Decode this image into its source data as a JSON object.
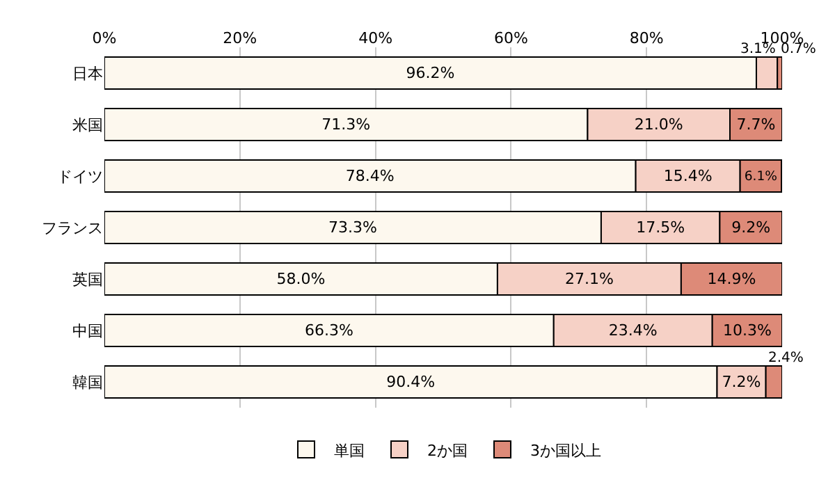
{
  "chart_data": {
    "type": "bar",
    "orientation": "horizontal",
    "stacked": true,
    "categories": [
      "日本",
      "米国",
      "ドイツ",
      "フランス",
      "英国",
      "中国",
      "韓国"
    ],
    "series": [
      {
        "name": "単国",
        "color": "#fdf8ee",
        "values": [
          96.2,
          71.3,
          78.4,
          73.3,
          58.0,
          66.3,
          90.4
        ],
        "value_labels": [
          "96.2%",
          "71.3%",
          "78.4%",
          "73.3%",
          "58.0%",
          "66.3%",
          "90.4%"
        ]
      },
      {
        "name": "2か国",
        "color": "#f6d1c6",
        "values": [
          3.1,
          21.0,
          15.4,
          17.5,
          27.1,
          23.4,
          7.2
        ],
        "value_labels": [
          "3.1%",
          "21.0%",
          "15.4%",
          "17.5%",
          "27.1%",
          "23.4%",
          "7.2%"
        ]
      },
      {
        "name": "3か国以上",
        "color": "#dd8a78",
        "values": [
          0.7,
          7.7,
          6.1,
          9.2,
          14.9,
          10.3,
          2.4
        ],
        "value_labels": [
          "0.7%",
          "7.7%",
          "6.1%",
          "9.2%",
          "14.9%",
          "10.3%",
          "2.4%"
        ]
      }
    ],
    "xlim": [
      0,
      100
    ],
    "xticks": [
      {
        "value": 0,
        "label": "0%"
      },
      {
        "value": 20,
        "label": "20%"
      },
      {
        "value": 40,
        "label": "40%"
      },
      {
        "value": 60,
        "label": "60%"
      },
      {
        "value": 80,
        "label": "80%"
      },
      {
        "value": 100,
        "label": "100%"
      }
    ],
    "grid": "x",
    "legend": "bottom"
  }
}
